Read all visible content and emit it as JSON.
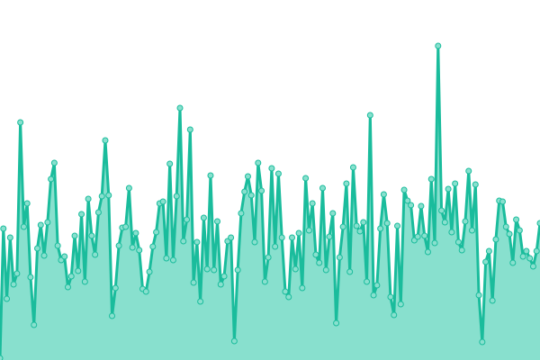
{
  "chart_data": {
    "type": "area",
    "title": "",
    "xlabel": "",
    "ylabel": "",
    "grid": false,
    "legend": "none",
    "ylim": [
      0,
      400
    ],
    "colors": {
      "line": "#1abc9c",
      "fill": "#88e0ce",
      "point_fill": "#88e0ce",
      "background": "#ffffff"
    },
    "values": [
      2,
      146,
      68,
      136,
      84,
      96,
      264,
      148,
      174,
      92,
      39,
      124,
      150,
      116,
      153,
      201,
      219,
      127,
      111,
      115,
      81,
      93,
      138,
      99,
      162,
      87,
      179,
      138,
      117,
      164,
      182,
      244,
      183,
      49,
      80,
      127,
      147,
      148,
      191,
      125,
      141,
      122,
      79,
      76,
      98,
      126,
      142,
      174,
      176,
      113,
      218,
      111,
      182,
      280,
      132,
      156,
      256,
      86,
      131,
      65,
      158,
      101,
      205,
      100,
      154,
      84,
      93,
      132,
      136,
      21,
      100,
      163,
      187,
      204,
      183,
      131,
      219,
      188,
      87,
      114,
      213,
      126,
      207,
      136,
      76,
      70,
      136,
      101,
      141,
      80,
      202,
      144,
      174,
      117,
      108,
      191,
      100,
      137,
      163,
      41,
      114,
      148,
      196,
      98,
      214,
      149,
      143,
      153,
      87,
      272,
      72,
      83,
      146,
      184,
      152,
      70,
      50,
      149,
      62,
      189,
      177,
      172,
      133,
      137,
      171,
      138,
      120,
      201,
      130,
      349,
      166,
      153,
      190,
      142,
      196,
      131,
      122,
      154,
      210,
      144,
      195,
      72,
      20,
      109,
      121,
      66,
      134,
      177,
      176,
      148,
      140,
      108,
      156,
      144,
      115,
      121,
      113,
      104,
      121,
      152
    ]
  }
}
